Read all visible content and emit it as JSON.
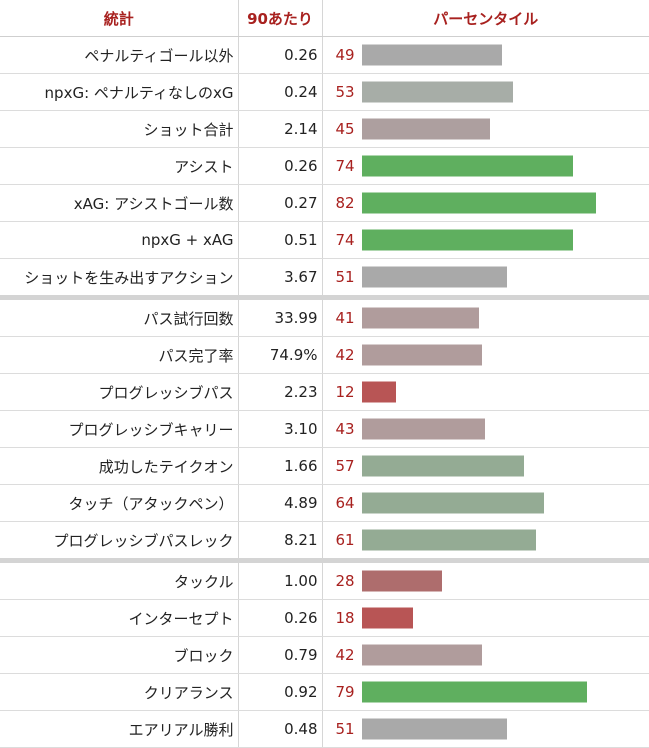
{
  "header": {
    "stat": "統計",
    "per90": "90あたり",
    "percentile": "パーセンタイル"
  },
  "colors": {
    "accent": "#a8211f",
    "bar_high": "#5faf5f",
    "bar_mid_high": "#94ab94",
    "bar_neutral": "#a9a9a9",
    "bar_mid_low": "#b09c9c",
    "bar_low": "#ae6d6d",
    "bar_very_low": "#b85555"
  },
  "chart_data": {
    "type": "bar",
    "xlim": [
      0,
      100
    ],
    "rows": [
      {
        "stat": "ペナルティゴール以外",
        "per90": "0.26",
        "percentile": 49,
        "color": "#a9a9a9",
        "group": 1
      },
      {
        "stat": "npxG: ペナルティなしのxG",
        "per90": "0.24",
        "percentile": 53,
        "color": "#a7ada7",
        "group": 1
      },
      {
        "stat": "ショット合計",
        "per90": "2.14",
        "percentile": 45,
        "color": "#ad9f9f",
        "group": 1
      },
      {
        "stat": "アシスト",
        "per90": "0.26",
        "percentile": 74,
        "color": "#5faf5f",
        "group": 1
      },
      {
        "stat": "xAG: アシストゴール数",
        "per90": "0.27",
        "percentile": 82,
        "color": "#5faf5f",
        "group": 1
      },
      {
        "stat": "npxG + xAG",
        "per90": "0.51",
        "percentile": 74,
        "color": "#5faf5f",
        "group": 1
      },
      {
        "stat": "ショットを生み出すアクション",
        "per90": "3.67",
        "percentile": 51,
        "color": "#a9a9a9",
        "group": 1
      },
      {
        "stat": "パス試行回数",
        "per90": "33.99",
        "percentile": 41,
        "color": "#b09c9c",
        "group": 2
      },
      {
        "stat": "パス完了率",
        "per90": "74.9%",
        "percentile": 42,
        "color": "#b09c9c",
        "group": 2
      },
      {
        "stat": "プログレッシブパス",
        "per90": "2.23",
        "percentile": 12,
        "color": "#b85555",
        "group": 2
      },
      {
        "stat": "プログレッシブキャリー",
        "per90": "3.10",
        "percentile": 43,
        "color": "#b09c9c",
        "group": 2
      },
      {
        "stat": "成功したテイクオン",
        "per90": "1.66",
        "percentile": 57,
        "color": "#94ab94",
        "group": 2
      },
      {
        "stat": "タッチ（アタックペン）",
        "per90": "4.89",
        "percentile": 64,
        "color": "#94ab94",
        "group": 2
      },
      {
        "stat": "プログレッシブパスレック",
        "per90": "8.21",
        "percentile": 61,
        "color": "#94ab94",
        "group": 2
      },
      {
        "stat": "タックル",
        "per90": "1.00",
        "percentile": 28,
        "color": "#ae6d6d",
        "group": 3
      },
      {
        "stat": "インターセプト",
        "per90": "0.26",
        "percentile": 18,
        "color": "#b85555",
        "group": 3
      },
      {
        "stat": "ブロック",
        "per90": "0.79",
        "percentile": 42,
        "color": "#b09c9c",
        "group": 3
      },
      {
        "stat": "クリアランス",
        "per90": "0.92",
        "percentile": 79,
        "color": "#5faf5f",
        "group": 3
      },
      {
        "stat": "エアリアル勝利",
        "per90": "0.48",
        "percentile": 51,
        "color": "#a9a9a9",
        "group": 3
      }
    ]
  }
}
